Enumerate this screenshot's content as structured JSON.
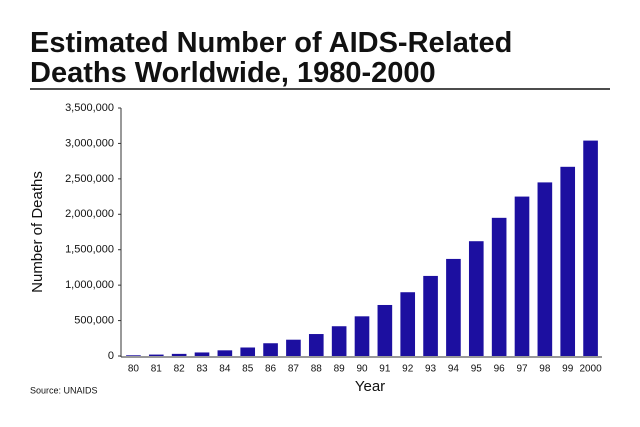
{
  "chart_data": {
    "type": "bar",
    "title": [
      "Estimated Number of AIDS-Related",
      "Deaths Worldwide, 1980-2000"
    ],
    "x_label": "Year",
    "y_label": "Number of Deaths",
    "source": "Source: UNAIDS",
    "categories": [
      "80",
      "81",
      "82",
      "83",
      "84",
      "85",
      "86",
      "87",
      "88",
      "89",
      "90",
      "91",
      "92",
      "93",
      "94",
      "95",
      "96",
      "97",
      "98",
      "99",
      "2000"
    ],
    "values": [
      10000,
      20000,
      30000,
      50000,
      80000,
      120000,
      180000,
      230000,
      310000,
      420000,
      560000,
      720000,
      900000,
      1130000,
      1370000,
      1620000,
      1950000,
      2250000,
      2450000,
      2670000,
      3040000
    ],
    "color": "#1c0fa0",
    "ylim": [
      0,
      3500000
    ],
    "yticks": [
      0,
      {
        "value": 500000,
        "label": "500,000"
      },
      {
        "value": 1000000,
        "label": "1,000,000"
      },
      {
        "value": 1500000,
        "label": "1,500,000"
      },
      {
        "value": 2000000,
        "label": "2,000,000"
      },
      {
        "value": 2500000,
        "label": "2,500,000"
      },
      {
        "value": 3000000,
        "label": "3,000,000"
      },
      {
        "value": 3500000,
        "label": "3,500,000"
      }
    ],
    "grid": false
  }
}
